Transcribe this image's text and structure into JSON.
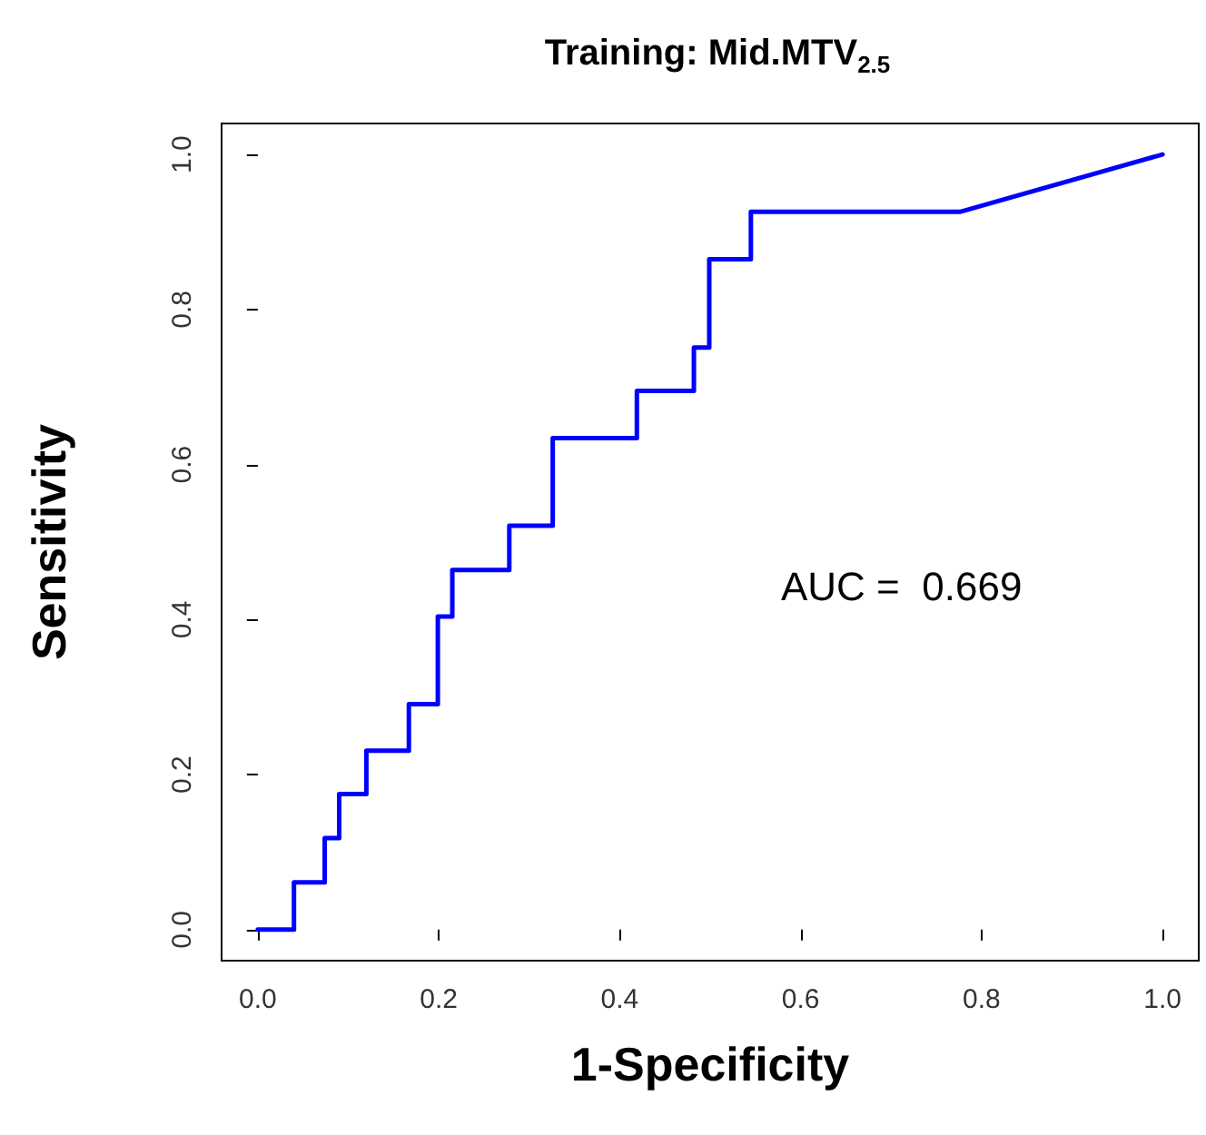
{
  "chart_data": {
    "type": "line",
    "title": "Training: Mid.MTV$_{2.5}$",
    "xlabel": "1-Specificity",
    "ylabel": "Sensitivity",
    "x": [
      0,
      0.04,
      0.04,
      0.074,
      0.074,
      0.09,
      0.09,
      0.12,
      0.12,
      0.167,
      0.167,
      0.199,
      0.199,
      0.215,
      0.215,
      0.278,
      0.278,
      0.326,
      0.326,
      0.419,
      0.419,
      0.482,
      0.482,
      0.499,
      0.499,
      0.545,
      0.545,
      0.776,
      1
    ],
    "series": [
      {
        "color": "#0000ff",
        "values": [
          0,
          0,
          0.061,
          0.061,
          0.118,
          0.118,
          0.175,
          0.175,
          0.231,
          0.231,
          0.291,
          0.291,
          0.404,
          0.404,
          0.464,
          0.464,
          0.521,
          0.521,
          0.634,
          0.634,
          0.695,
          0.695,
          0.751,
          0.751,
          0.865,
          0.865,
          0.926,
          0.926,
          1
        ]
      }
    ],
    "xlim": [
      -0.04,
      1.04
    ],
    "ylim": [
      -0.04,
      1.04
    ],
    "xticks": [
      {
        "value": 0,
        "label": "0.0"
      },
      {
        "value": 0.2,
        "label": "0.2"
      },
      {
        "value": 0.4,
        "label": "0.4"
      },
      {
        "value": 0.6,
        "label": "0.6"
      },
      {
        "value": 0.8,
        "label": "0.8"
      },
      {
        "value": 1,
        "label": "1.0"
      }
    ],
    "yticks": [
      {
        "value": 0,
        "label": "0.0"
      },
      {
        "value": 0.2,
        "label": "0.2"
      },
      {
        "value": 0.4,
        "label": "0.4"
      },
      {
        "value": 0.6,
        "label": "0.6"
      },
      {
        "value": 0.8,
        "label": "0.8"
      },
      {
        "value": 1,
        "label": "1.0"
      }
    ],
    "annotations": [
      "AUC =  0.669"
    ],
    "grid": false,
    "marker": "none",
    "line_style": "solid"
  }
}
